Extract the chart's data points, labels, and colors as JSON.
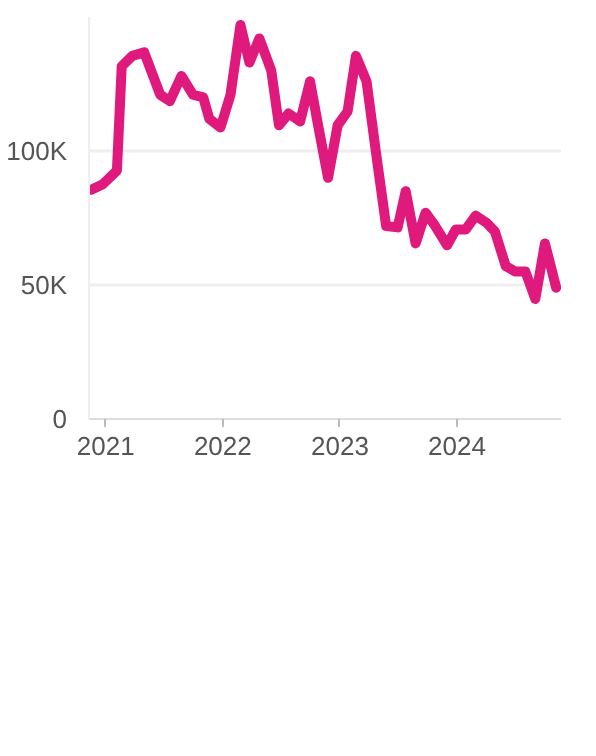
{
  "chart_data": {
    "type": "line",
    "x": [
      "2020-11-17",
      "2020-12-23",
      "2021-02-05",
      "2021-02-20",
      "2021-03-25",
      "2021-05-01",
      "2021-06-20",
      "2021-07-20",
      "2021-08-25",
      "2021-09-30",
      "2021-11-01",
      "2021-11-20",
      "2021-12-25",
      "2022-01-25",
      "2022-02-25",
      "2022-03-25",
      "2022-04-25",
      "2022-06-01",
      "2022-06-25",
      "2022-07-25",
      "2022-08-30",
      "2022-09-30",
      "2022-10-25",
      "2022-11-25",
      "2022-12-25",
      "2023-01-25",
      "2023-02-20",
      "2023-03-25",
      "2023-04-25",
      "2023-05-25",
      "2023-06-30",
      "2023-07-25",
      "2023-08-25",
      "2023-09-25",
      "2023-10-25",
      "2023-12-01",
      "2023-12-28",
      "2024-01-28",
      "2024-02-28",
      "2024-04-01",
      "2024-04-28",
      "2024-06-01",
      "2024-07-01",
      "2024-08-01",
      "2024-09-01",
      "2024-10-01",
      "2024-11-05"
    ],
    "series": [
      {
        "color": "#e0197d",
        "values": [
          85500,
          87600,
          92700,
          131600,
          135500,
          136800,
          121000,
          118600,
          128000,
          121000,
          120000,
          112000,
          108800,
          121000,
          147000,
          133000,
          142000,
          130000,
          109600,
          114000,
          111000,
          126000,
          109600,
          90000,
          109600,
          114800,
          135500,
          126000,
          98000,
          72000,
          71500,
          85000,
          65500,
          77000,
          72000,
          64800,
          70700,
          70700,
          75900,
          73300,
          70000,
          57000,
          55000,
          55000,
          44800,
          65500,
          49000
        ]
      }
    ],
    "xlim": [
      "2020-11-10",
      "2024-11-20"
    ],
    "xticks": [
      {
        "value": "2021-01-01",
        "label": "2021"
      },
      {
        "value": "2022-01-01",
        "label": "2022"
      },
      {
        "value": "2023-01-01",
        "label": "2023"
      },
      {
        "value": "2024-01-01",
        "label": "2024"
      }
    ],
    "ylim": [
      0,
      150000
    ],
    "yticks": [
      {
        "value": 0,
        "label": "0"
      },
      {
        "value": 50000,
        "label": "50K"
      },
      {
        "value": 100000,
        "label": "100K"
      }
    ],
    "grid": "y",
    "line_style": "solid"
  }
}
